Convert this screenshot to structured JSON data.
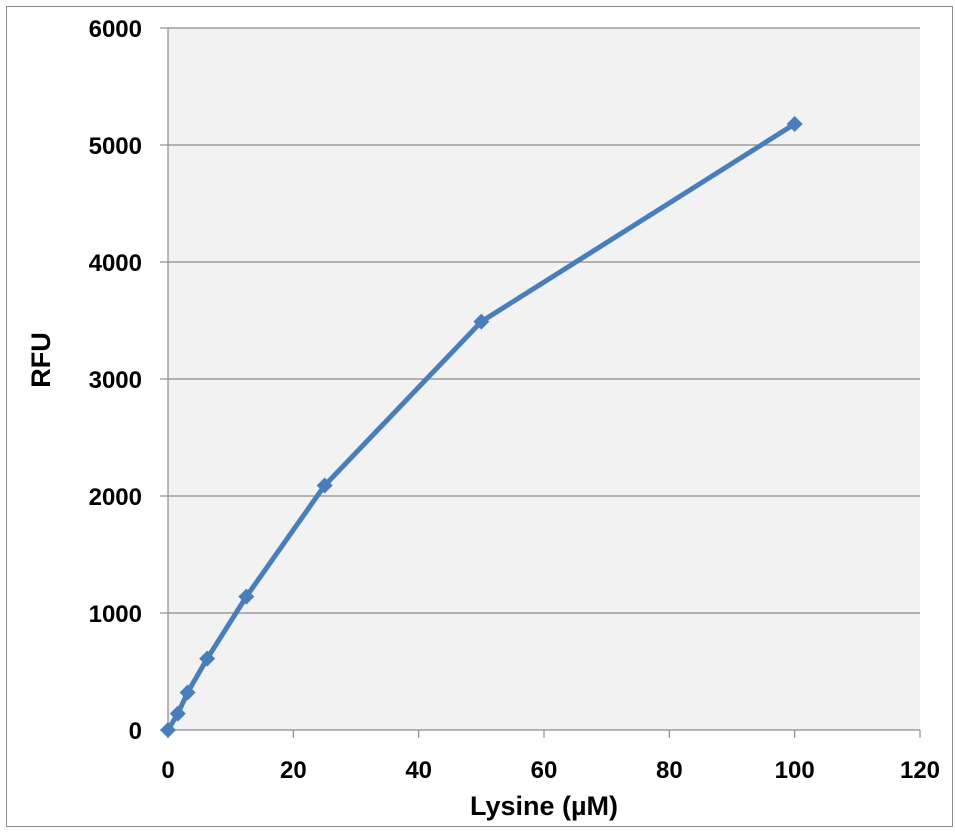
{
  "chart_data": {
    "type": "scatter",
    "xlabel": "Lysine (µM)",
    "ylabel": "RFU",
    "xlim": [
      0,
      120
    ],
    "ylim": [
      0,
      6000
    ],
    "x_ticks": [
      0,
      20,
      40,
      60,
      80,
      100,
      120
    ],
    "y_ticks": [
      0,
      1000,
      2000,
      3000,
      4000,
      5000,
      6000
    ],
    "grid": "horizontal",
    "legend": "none",
    "series": [
      {
        "color": "#4a7ebb",
        "marker": "diamond",
        "line": true,
        "x": [
          0,
          1.5625,
          3.125,
          6.25,
          12.5,
          25,
          50,
          100
        ],
        "y": [
          0,
          140,
          320,
          610,
          1140,
          2090,
          3490,
          5180
        ]
      }
    ],
    "colors": {
      "plot_background": "#f2f2f2",
      "gridline": "#8c8c8c",
      "frame": "#8c8c8c",
      "series": "#4a7ebb"
    }
  }
}
